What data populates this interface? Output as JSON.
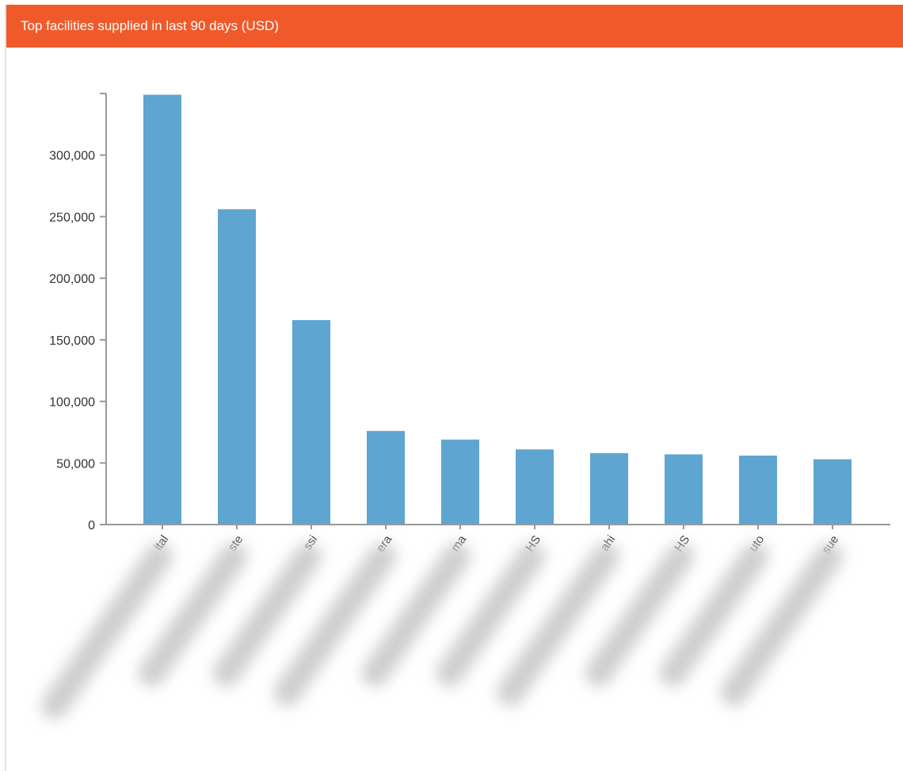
{
  "panel": {
    "title": "Top facilities supplied in last 90 days (USD)"
  },
  "colors": {
    "header": "#f05a2b",
    "bar": "#5fa5d1",
    "axis": "#999999"
  },
  "chart_data": {
    "type": "bar",
    "title": "Top facilities supplied in last 90 days (USD)",
    "xlabel": "",
    "ylabel": "",
    "categories": [
      "ital",
      "ste",
      "ssi",
      "era",
      "ma",
      "HS",
      "ahi",
      "HS",
      "uto",
      "sue"
    ],
    "values": [
      349000,
      256000,
      166000,
      76000,
      69000,
      61000,
      58000,
      57000,
      56000,
      53000
    ],
    "ylim": [
      0,
      350000
    ],
    "yticks": [
      0,
      50000,
      100000,
      150000,
      200000,
      250000,
      300000
    ],
    "ytick_labels": [
      "0",
      "50,000",
      "100,000",
      "150,000",
      "200,000",
      "250,000",
      "300,000"
    ],
    "grid": false,
    "legend": "none"
  }
}
